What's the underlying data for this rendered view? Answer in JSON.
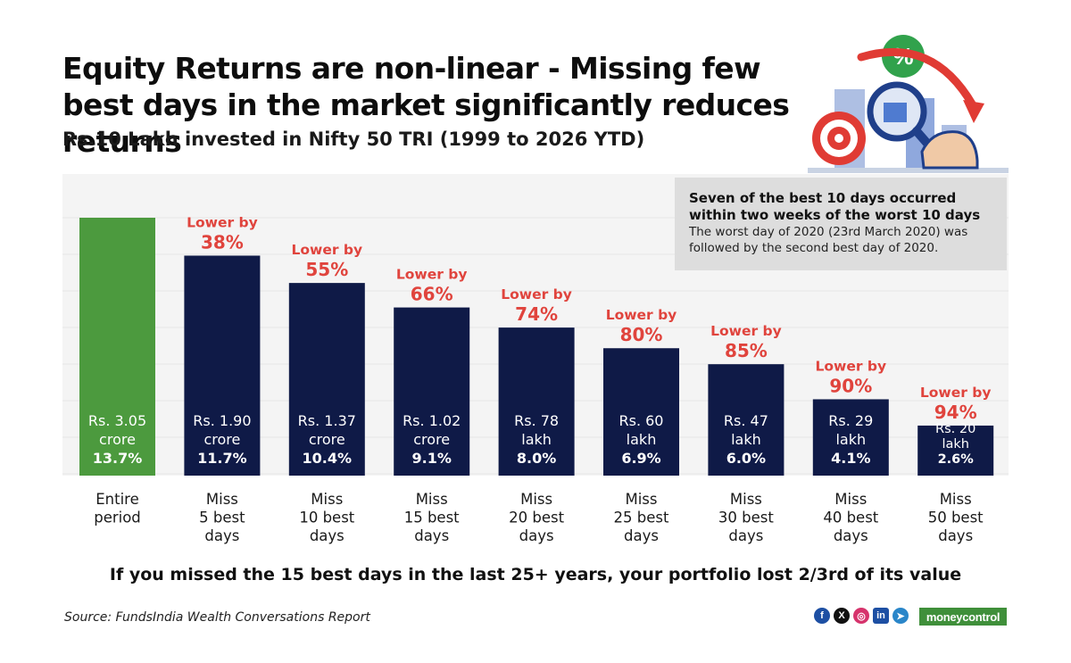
{
  "title": "Equity Returns are non-linear - Missing few best days in the market significantly reduces returns",
  "subtitle": "Rs.10 Lakh invested in Nifty 50 TRI (1999 to 2026 YTD)",
  "note": {
    "heading": "Seven of the best 10 days occurred within two weeks of the worst 10 days",
    "body": "The worst day of 2020 (23rd March 2020) was followed by the second best day of 2020."
  },
  "footer_message": "If you missed the 15 best days in the last 25+ years, your portfolio lost 2/3rd of its value",
  "source": "Source: FundsIndia Wealth Conversations Report",
  "brand": "moneycontrol",
  "social_icons": [
    "facebook-icon",
    "x-icon",
    "instagram-icon",
    "linkedin-icon",
    "telegram-icon"
  ],
  "colors": {
    "entire_period_bar": "#4c9a3e",
    "miss_bar": "#0f1a47",
    "reduction_label": "#e0443d"
  },
  "chart_data": {
    "type": "bar",
    "categories": [
      [
        "Entire",
        "period"
      ],
      [
        "Miss",
        "5 best",
        "days"
      ],
      [
        "Miss",
        "10 best",
        "days"
      ],
      [
        "Miss",
        "15 best",
        "days"
      ],
      [
        "Miss",
        "20 best",
        "days"
      ],
      [
        "Miss",
        "25 best",
        "days"
      ],
      [
        "Miss",
        "30 best",
        "days"
      ],
      [
        "Miss",
        "40 best",
        "days"
      ],
      [
        "Miss",
        "50 best",
        "days"
      ]
    ],
    "values_rs_lakh": [
      305,
      190,
      137,
      102,
      78,
      60,
      47,
      29,
      20
    ],
    "value_labels": [
      [
        "Rs. 3.05",
        "crore",
        "13.7%"
      ],
      [
        "Rs. 1.90",
        "crore",
        "11.7%"
      ],
      [
        "Rs. 1.37",
        "crore",
        "10.4%"
      ],
      [
        "Rs. 1.02",
        "crore",
        "9.1%"
      ],
      [
        "Rs. 78",
        "lakh",
        "8.0%"
      ],
      [
        "Rs. 60",
        "lakh",
        "6.9%"
      ],
      [
        "Rs. 47",
        "lakh",
        "6.0%"
      ],
      [
        "Rs. 29",
        "lakh",
        "4.1%"
      ],
      [
        "Rs. 20",
        "lakh",
        "2.6%"
      ]
    ],
    "cagr_percent": [
      13.7,
      11.7,
      10.4,
      9.1,
      8.0,
      6.9,
      6.0,
      4.1,
      2.6
    ],
    "reduction_prefix": "Lower by",
    "reduction_labels": [
      "",
      "38%",
      "55%",
      "66%",
      "74%",
      "80%",
      "85%",
      "90%",
      "94%"
    ],
    "bar_heights_relative": [
      1.0,
      0.853,
      0.747,
      0.652,
      0.574,
      0.494,
      0.432,
      0.296,
      0.194
    ],
    "grid": true,
    "title": "",
    "xlabel": "",
    "ylabel": ""
  }
}
